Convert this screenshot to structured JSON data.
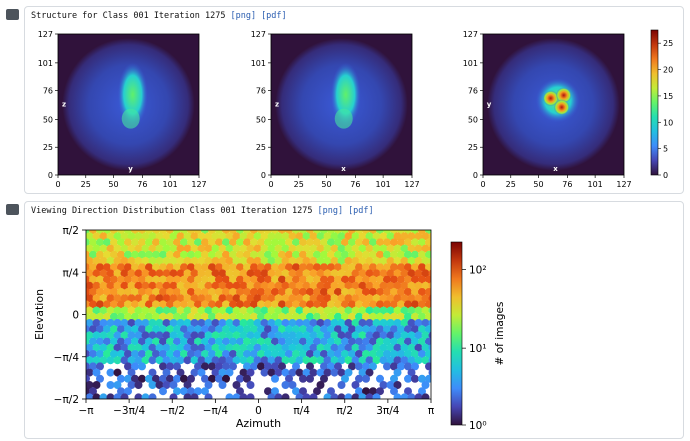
{
  "panel1": {
    "title": "Structure for Class 001 Iteration 1275",
    "png_link": "[png]",
    "pdf_link": "[pdf]"
  },
  "panel2": {
    "title": "Viewing Direction Distribution Class 001 Iteration 1275",
    "png_link": "[png]",
    "pdf_link": "[pdf]"
  },
  "structure": {
    "ticks": [
      "0",
      "25",
      "50",
      "76",
      "101",
      "127"
    ],
    "views": [
      {
        "v_label": "z",
        "h_label": "y"
      },
      {
        "v_label": "z",
        "h_label": "x"
      },
      {
        "v_label": "y",
        "h_label": "x"
      }
    ],
    "colorbar_ticks": [
      "0",
      "5",
      "10",
      "15",
      "20",
      "25"
    ]
  },
  "chart_data": {
    "type": "heatmap",
    "xlabel": "Azimuth",
    "ylabel": "Elevation",
    "x_ticks": [
      "−π",
      "−3π/4",
      "−π/2",
      "−π/4",
      "0",
      "π/4",
      "π/2",
      "3π/4",
      "π"
    ],
    "y_ticks": [
      "π/2",
      "π/4",
      "0",
      "−π/4",
      "−π/2"
    ],
    "xlim": [
      "−π",
      "π"
    ],
    "ylim": [
      "−π/2",
      "π/2"
    ],
    "colorbar_label": "# of images",
    "colorbar_scale": "log",
    "colorbar_ticks": [
      "10²",
      "10¹",
      "10⁰"
    ],
    "colormap": "turbo"
  },
  "colors": {
    "panel_border": "#d7dbe0",
    "link": "#2a5db0",
    "map_background": "#30123b"
  }
}
